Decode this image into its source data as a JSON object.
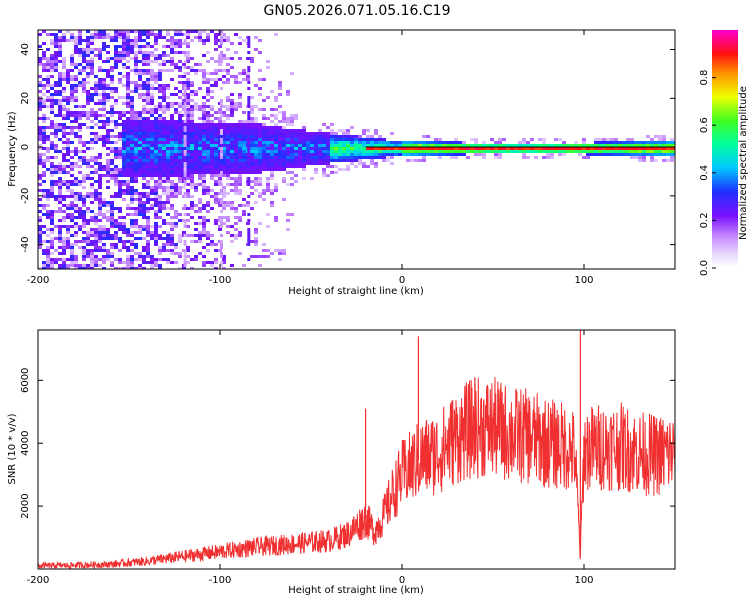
{
  "title": "GN05.2026.071.05.16.C19",
  "chart_data": [
    {
      "type": "heatmap",
      "id": "spectrogram",
      "xlabel": "Height of straight line (km)",
      "ylabel": "Frequency (Hz)",
      "xlim": [
        -200,
        150
      ],
      "ylim": [
        -50,
        48
      ],
      "xticks": [
        -200,
        -100,
        0,
        100
      ],
      "yticks": [
        -40,
        -20,
        0,
        20,
        40
      ],
      "colorbar": {
        "label": "Normalized spectral amplitude",
        "range": [
          0,
          1
        ],
        "ticks": [
          0.0,
          0.2,
          0.4,
          0.6,
          0.8
        ],
        "colors": [
          "#ffffff",
          "#c8a8f8",
          "#7a10ff",
          "#2030ff",
          "#00d8ff",
          "#10ff40",
          "#f8f800",
          "#ff2000",
          "#ff00c0"
        ]
      },
      "description_values": {
        "noise_region_x": [
          -200,
          -150
        ],
        "spectral_band_center_hz": 0,
        "band_halfwidth_hz_at_x": [
          [
            -150,
            12
          ],
          [
            -80,
            10
          ],
          [
            -40,
            6
          ],
          [
            0,
            3
          ],
          [
            60,
            2
          ],
          [
            150,
            3
          ]
        ],
        "peak_amplitude_region_x": [
          0,
          150
        ]
      }
    },
    {
      "type": "line",
      "id": "snr",
      "xlabel": "Height of straight line (km)",
      "ylabel": "SNR (10 * v/v)",
      "xlim": [
        -200,
        150
      ],
      "ylim": [
        0,
        7600
      ],
      "xticks": [
        -200,
        -100,
        0,
        100
      ],
      "yticks": [
        2000,
        4000,
        6000
      ],
      "series": [
        {
          "name": "SNR",
          "color": "#f03030",
          "x": [
            -200,
            -180,
            -160,
            -140,
            -120,
            -100,
            -80,
            -60,
            -40,
            -30,
            -20,
            -15,
            -10,
            -5,
            0,
            10,
            20,
            30,
            40,
            50,
            60,
            70,
            80,
            90,
            95,
            98,
            100,
            110,
            120,
            130,
            140,
            150
          ],
          "y": [
            100,
            120,
            150,
            250,
            400,
            550,
            700,
            800,
            900,
            1100,
            1600,
            1200,
            1700,
            2400,
            3000,
            3500,
            3700,
            4200,
            4500,
            4500,
            4300,
            4200,
            4000,
            3900,
            3700,
            400,
            3800,
            3900,
            3900,
            3700,
            3600,
            3700
          ],
          "spikes": [
            {
              "x": 9,
              "y": 7400
            },
            {
              "x": 98,
              "y": 7600
            },
            {
              "x": -20,
              "y": 5100
            },
            {
              "x": 40,
              "y": 6100
            }
          ]
        }
      ]
    }
  ]
}
